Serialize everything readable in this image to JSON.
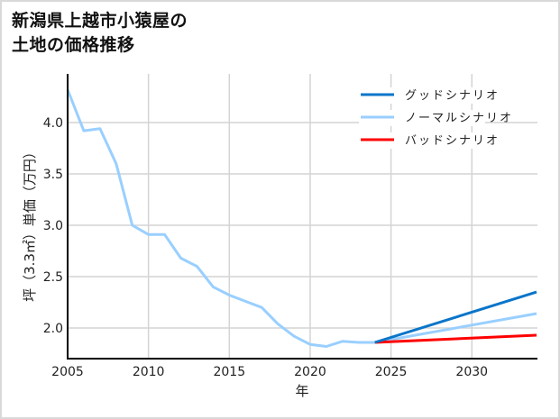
{
  "title": {
    "line1": "新潟県上越市小猿屋の",
    "line2": "土地の価格推移"
  },
  "colors": {
    "good": "#0a75c9",
    "normal": "#99cfff",
    "bad": "#ff0000",
    "grid": "#d4d4d4",
    "axis": "#000000"
  },
  "chart_data": {
    "type": "line",
    "title": "新潟県上越市小猿屋の土地の価格推移",
    "xlabel": "年",
    "ylabel": "坪（3.3㎡）単価（万円）",
    "xlim": [
      2005,
      2034
    ],
    "ylim": [
      1.7,
      4.35
    ],
    "x_ticks": [
      2005,
      2010,
      2015,
      2020,
      2025,
      2030
    ],
    "y_ticks": [
      2.0,
      2.5,
      3.0,
      3.5,
      4.0
    ],
    "y_tick_labels": [
      "2.0",
      "2.5",
      "3.0",
      "3.5",
      "4.0"
    ],
    "grid": true,
    "legend_position": "upper right",
    "series": [
      {
        "name": "ノーマルシナリオ",
        "key": "historical",
        "x": [
          2005,
          2006,
          2007,
          2008,
          2009,
          2010,
          2011,
          2012,
          2013,
          2014,
          2015,
          2016,
          2017,
          2018,
          2019,
          2020,
          2021,
          2022,
          2023,
          2024
        ],
        "values": [
          4.32,
          3.92,
          3.94,
          3.6,
          3.0,
          2.91,
          2.91,
          2.68,
          2.6,
          2.4,
          2.32,
          2.26,
          2.2,
          2.04,
          1.92,
          1.84,
          1.82,
          1.87,
          1.86,
          1.86
        ]
      },
      {
        "name": "グッドシナリオ",
        "key": "good",
        "x": [
          2024,
          2034
        ],
        "values": [
          1.86,
          2.35
        ]
      },
      {
        "name": "ノーマルシナリオ",
        "key": "normal",
        "x": [
          2024,
          2034
        ],
        "values": [
          1.86,
          2.14
        ]
      },
      {
        "name": "バッドシナリオ",
        "key": "bad",
        "x": [
          2024,
          2034
        ],
        "values": [
          1.86,
          1.93
        ]
      }
    ],
    "legend": [
      "グッドシナリオ",
      "ノーマルシナリオ",
      "バッドシナリオ"
    ]
  }
}
